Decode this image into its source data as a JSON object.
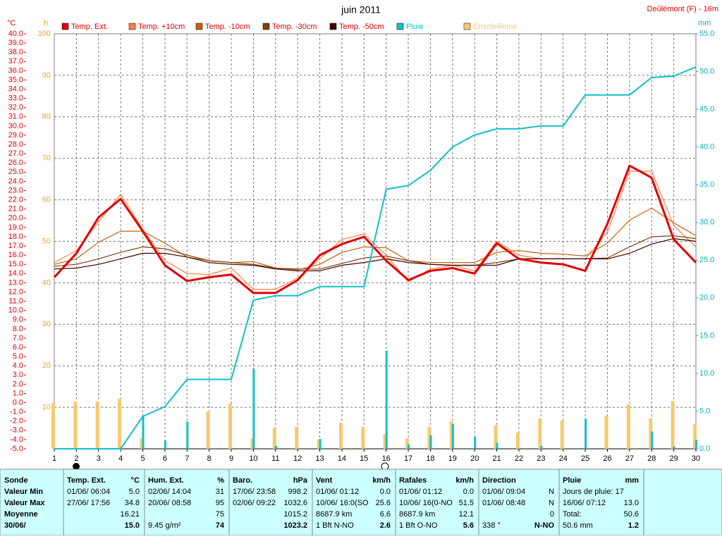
{
  "chart_data": {
    "type": "line",
    "title": "juin 2011",
    "location": "Deûlémont (F) - 16m",
    "ylabel": "°C",
    "y3label": "h",
    "y2label": "mm",
    "x": [
      1,
      2,
      3,
      4,
      5,
      6,
      7,
      8,
      9,
      10,
      11,
      12,
      13,
      14,
      15,
      16,
      17,
      18,
      19,
      20,
      21,
      22,
      23,
      24,
      25,
      26,
      27,
      28,
      29,
      30
    ],
    "xlim": [
      1,
      30
    ],
    "xticks": [
      1,
      2,
      3,
      4,
      5,
      6,
      7,
      8,
      9,
      10,
      11,
      12,
      13,
      14,
      15,
      16,
      17,
      18,
      19,
      20,
      21,
      22,
      23,
      24,
      25,
      26,
      27,
      28,
      29,
      30
    ],
    "ylim": [
      -5,
      40
    ],
    "yticks": [
      {
        "value": 40,
        "label": "40.0"
      },
      {
        "value": 39,
        "label": "39.0"
      },
      {
        "value": 38,
        "label": "38.0"
      },
      {
        "value": 37,
        "label": "37.0"
      },
      {
        "value": 36,
        "label": "36.0"
      },
      {
        "value": 35,
        "label": "35.0"
      },
      {
        "value": 34,
        "label": "34.0"
      },
      {
        "value": 33,
        "label": "33.0"
      },
      {
        "value": 32,
        "label": "32.0"
      },
      {
        "value": 31,
        "label": "31.0"
      },
      {
        "value": 30,
        "label": "30.0"
      },
      {
        "value": 29,
        "label": "29.0"
      },
      {
        "value": 28,
        "label": "28.0"
      },
      {
        "value": 27,
        "label": "27.0"
      },
      {
        "value": 26,
        "label": "26.0"
      },
      {
        "value": 25,
        "label": "25.0"
      },
      {
        "value": 24,
        "label": "24.0"
      },
      {
        "value": 23,
        "label": "23.0"
      },
      {
        "value": 22,
        "label": "22.0"
      },
      {
        "value": 21,
        "label": "21.0"
      },
      {
        "value": 20,
        "label": "20.0"
      },
      {
        "value": 19,
        "label": "19.0"
      },
      {
        "value": 18,
        "label": "18.0"
      },
      {
        "value": 17,
        "label": "17.0"
      },
      {
        "value": 16,
        "label": "16.0"
      },
      {
        "value": 15,
        "label": "15.0"
      },
      {
        "value": 14,
        "label": "14.0"
      },
      {
        "value": 13,
        "label": "13.0"
      },
      {
        "value": 12,
        "label": "12.0"
      },
      {
        "value": 11,
        "label": "11.0"
      },
      {
        "value": 10,
        "label": "10.0"
      },
      {
        "value": 9,
        "label": "9.0"
      },
      {
        "value": 8,
        "label": "8.0"
      },
      {
        "value": 7,
        "label": "7.0"
      },
      {
        "value": 6,
        "label": "6.0"
      },
      {
        "value": 5,
        "label": "5.0"
      },
      {
        "value": 4,
        "label": "4.0"
      },
      {
        "value": 3,
        "label": "3.0"
      },
      {
        "value": 2,
        "label": "2.0"
      },
      {
        "value": 1,
        "label": "1.0"
      },
      {
        "value": 0,
        "label": "0.0"
      },
      {
        "value": -1,
        "label": "-1.0"
      },
      {
        "value": -2,
        "label": "-2.0"
      },
      {
        "value": -3,
        "label": "-3.0"
      },
      {
        "value": -4,
        "label": "-4.0"
      },
      {
        "value": -5,
        "label": "-5.0"
      }
    ],
    "y3lim": [
      0,
      100
    ],
    "y3ticks": [
      10,
      20,
      30,
      40,
      50,
      60,
      70,
      80,
      90,
      100
    ],
    "y2lim": [
      0,
      55
    ],
    "y2ticks": [
      {
        "value": 0,
        "label": "0.0"
      },
      {
        "value": 5,
        "label": "5.0"
      },
      {
        "value": 10,
        "label": "10.0"
      },
      {
        "value": 15,
        "label": "15.0"
      },
      {
        "value": 20,
        "label": "20.0"
      },
      {
        "value": 25,
        "label": "25.0"
      },
      {
        "value": 30,
        "label": "30.0"
      },
      {
        "value": 35,
        "label": "35.0"
      },
      {
        "value": 40,
        "label": "40.0"
      },
      {
        "value": 45,
        "label": "45.0"
      },
      {
        "value": 50,
        "label": "50.0"
      },
      {
        "value": 55,
        "label": "55.0"
      }
    ],
    "grid": true,
    "series": [
      {
        "name": "Ensoleilleme",
        "type": "bar",
        "axis": "y3",
        "color": "#f8c870",
        "values": [
          11.0,
          11.4,
          11.4,
          12.1,
          2.5,
          0,
          0,
          9.0,
          10.9,
          2.5,
          5.1,
          5.3,
          2.2,
          6.3,
          5.3,
          3.6,
          2.5,
          5.3,
          6.6,
          0,
          5.6,
          3.9,
          7.3,
          6.8,
          0,
          8.0,
          10.7,
          7.3,
          11.5,
          5.9
        ]
      },
      {
        "type": "bar",
        "axis": "y2",
        "color": "#10c0c8",
        "values": [
          0,
          0,
          0,
          0,
          4.3,
          1.1,
          3.6,
          0,
          0,
          10.6,
          0.4,
          0,
          1.3,
          0,
          0,
          13.0,
          0.6,
          1.8,
          3.3,
          1.6,
          0.8,
          0,
          0.4,
          0,
          4.0,
          0,
          0,
          2.3,
          0.3,
          1.2
        ]
      },
      {
        "name": "Temp. +10cm",
        "type": "line",
        "axis": "y",
        "color": "#ff8040",
        "values": [
          15.2,
          16.5,
          19.6,
          22.6,
          18.8,
          15.4,
          14.0,
          13.9,
          14.6,
          12.3,
          12.3,
          13.5,
          15.6,
          17.7,
          18.3,
          16.0,
          13.1,
          14.5,
          14.9,
          14.3,
          17.5,
          16.0,
          15.6,
          15.6,
          15.6,
          18.5,
          25.1,
          25.1,
          19.2,
          16.9
        ]
      },
      {
        "name": "Temp. -10cm",
        "type": "line",
        "axis": "y",
        "color": "#c86010",
        "values": [
          15.0,
          15.6,
          17.4,
          18.6,
          18.6,
          17.3,
          15.8,
          15.4,
          15.2,
          15.3,
          14.6,
          14.4,
          15.0,
          16.3,
          16.9,
          16.8,
          15.4,
          15.2,
          15.2,
          15.2,
          16.3,
          16.5,
          16.2,
          16.1,
          15.9,
          17.3,
          19.8,
          21.1,
          19.5,
          18.1
        ]
      },
      {
        "name": "Temp. -30cm",
        "type": "line",
        "axis": "y",
        "color": "#804010",
        "values": [
          14.8,
          15.0,
          15.6,
          16.3,
          16.9,
          16.7,
          16.0,
          15.4,
          15.2,
          15.0,
          14.6,
          14.5,
          14.5,
          15.1,
          15.7,
          15.9,
          15.4,
          15.0,
          14.9,
          14.9,
          15.2,
          15.6,
          15.6,
          15.6,
          15.6,
          15.7,
          16.9,
          18.0,
          18.1,
          17.8
        ]
      },
      {
        "name": "Temp. -50cm",
        "type": "line",
        "axis": "y",
        "color": "#400000",
        "values": [
          14.5,
          14.6,
          15.0,
          15.6,
          16.2,
          16.2,
          15.8,
          15.2,
          15.0,
          14.9,
          14.5,
          14.3,
          14.3,
          14.9,
          15.2,
          15.6,
          15.2,
          15.0,
          14.9,
          14.9,
          14.9,
          15.6,
          15.6,
          15.6,
          15.6,
          15.6,
          16.2,
          17.2,
          17.8,
          17.5
        ]
      },
      {
        "name": "Temp. Ext.",
        "type": "line",
        "axis": "y",
        "color": "#e00000",
        "width": 3,
        "values": [
          13.6,
          16.2,
          20.1,
          22.1,
          18.6,
          14.9,
          13.2,
          13.6,
          13.9,
          11.9,
          11.9,
          13.3,
          16.0,
          17.2,
          18.0,
          15.4,
          13.3,
          14.3,
          14.6,
          14.0,
          17.3,
          15.6,
          15.2,
          15.0,
          14.3,
          19.4,
          25.7,
          24.4,
          17.7,
          15.2
        ]
      },
      {
        "name": "Pluie",
        "type": "line",
        "axis": "y2",
        "color": "#10c0c8",
        "width": 2,
        "values": [
          0,
          0,
          0,
          0,
          4.3,
          5.6,
          9.2,
          9.2,
          9.2,
          19.7,
          20.3,
          20.3,
          21.5,
          21.5,
          21.5,
          34.4,
          34.9,
          36.9,
          40.0,
          41.6,
          42.4,
          42.4,
          42.8,
          42.8,
          46.9,
          46.9,
          46.9,
          49.2,
          49.4,
          50.6
        ]
      }
    ],
    "legend_order": [
      6,
      2,
      3,
      4,
      5,
      7,
      0
    ]
  },
  "table": {
    "row_labels": [
      "Sonde",
      "Valeur Min",
      "Valeur Max",
      "Moyenne",
      "30/06/"
    ],
    "columns": [
      {
        "header": [
          "Temp. Ext.",
          "°C"
        ],
        "rows": [
          {
            "left": "01/06/ 06:04",
            "right": "5.0"
          },
          {
            "left": "27/06/ 17:56",
            "right": "34.8"
          },
          {
            "right": "16.21"
          },
          {
            "right": "15.0"
          }
        ]
      },
      {
        "header": [
          "Hum. Ext.",
          "%"
        ],
        "rows": [
          {
            "left": "02/06/ 14:04",
            "right": "31"
          },
          {
            "left": "20/06/ 08:58",
            "right": "95"
          },
          {
            "right": "75"
          },
          {
            "left": "9.45 g/m²",
            "right": "74"
          }
        ]
      },
      {
        "header": [
          "Baro.",
          "hPa"
        ],
        "rows": [
          {
            "left": "17/06/ 23:58",
            "right": "998.2"
          },
          {
            "left": "02/06/ 09:22",
            "right": "1032.6"
          },
          {
            "right": "1015.2"
          },
          {
            "right": "1023.2"
          }
        ]
      },
      {
        "header": [
          "Vent",
          "km/h"
        ],
        "rows": [
          {
            "left": "01/06/ 01:12",
            "right": "0.0"
          },
          {
            "left": "10/06/ 16:0(SO",
            "right": "25.6"
          },
          {
            "left": "8687.9 km",
            "right": "6.6"
          },
          {
            "left": "1 Bft N-NO",
            "right": "2.6"
          }
        ]
      },
      {
        "header": [
          "Rafales",
          "km/h"
        ],
        "rows": [
          {
            "left": "01/06/ 01:12",
            "right": "0.0"
          },
          {
            "left": "10/06/ 16(0-NO",
            "right": "51.5"
          },
          {
            "left": "8687.9 km",
            "right": "12.1"
          },
          {
            "left": "1 Bft O-NO",
            "right": "5.6"
          }
        ]
      },
      {
        "header": [
          "Direction"
        ],
        "rows": [
          {
            "left": "01/06/ 09:04",
            "right": "N"
          },
          {
            "left": "01/06/ 08:48",
            "right": "N"
          },
          {
            "right": "0"
          },
          {
            "left": "338 °",
            "right": "N-NO"
          }
        ]
      },
      {
        "header": [
          "Pluie",
          "mm"
        ],
        "rows": [
          {
            "left": "Jours de pluie: 17"
          },
          {
            "left": "16/06/ 07:12",
            "right": "13.0"
          },
          {
            "left": "Total:",
            "right": "50.6"
          },
          {
            "left": "50.6 mm",
            "right": "1.2"
          }
        ]
      }
    ]
  }
}
